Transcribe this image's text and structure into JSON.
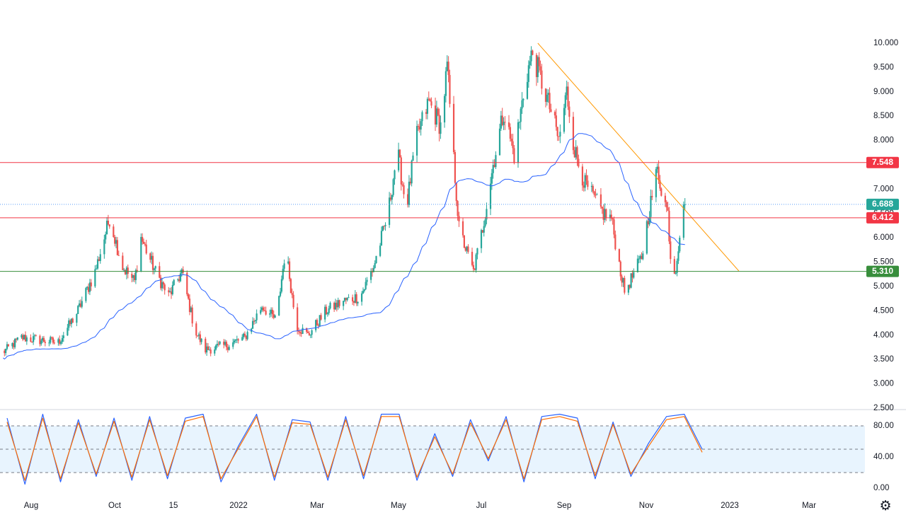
{
  "chart_data": [
    {
      "type": "candlestick",
      "price_axis": {
        "ticks": [
          "10.000",
          "9.500",
          "9.000",
          "8.500",
          "8.000",
          "7.500",
          "7.000",
          "6.500",
          "6.000",
          "5.500",
          "5.000",
          "4.500",
          "4.000",
          "3.500",
          "3.000",
          "2.500"
        ],
        "ylim": [
          2.5,
          10.0
        ]
      },
      "time_axis": {
        "ticks": [
          "Aug",
          "Oct",
          "15",
          "2022",
          "Mar",
          "May",
          "Jul",
          "Sep",
          "Nov",
          "2023",
          "Mar"
        ]
      },
      "horizontal_levels": [
        {
          "value": 7.548,
          "label": "7.548",
          "color": "#f23645"
        },
        {
          "value": 6.412,
          "label": "6.412",
          "color": "#f23645"
        },
        {
          "value": 5.31,
          "label": "5.310",
          "color": "#388e3c"
        }
      ],
      "last_price": {
        "value": 6.688,
        "label": "6.688",
        "color": "#26a69a"
      },
      "trendline": {
        "color": "#ff9800",
        "from": {
          "date": "Aug 2022",
          "price": 10.0
        },
        "to": {
          "date": "Jan 2023",
          "price": 5.32
        }
      },
      "moving_average": {
        "color": "#2962ff"
      },
      "colors": {
        "up": "#26a69a",
        "down": "#ef5350"
      },
      "price_path": [
        [
          "2021-07-12",
          3.65
        ],
        [
          "2021-07-26",
          3.95
        ],
        [
          "2021-08-09",
          3.9
        ],
        [
          "2021-08-23",
          3.85
        ],
        [
          "2021-09-06",
          4.45
        ],
        [
          "2021-09-20",
          5.3
        ],
        [
          "2021-10-01",
          6.4
        ],
        [
          "2021-10-11",
          5.4
        ],
        [
          "2021-10-20",
          5.1
        ],
        [
          "2021-10-25",
          6.0
        ],
        [
          "2021-11-05",
          5.3
        ],
        [
          "2021-11-15",
          4.8
        ],
        [
          "2021-11-25",
          5.3
        ],
        [
          "2021-12-05",
          4.1
        ],
        [
          "2021-12-13",
          3.7
        ],
        [
          "2021-12-30",
          3.8
        ],
        [
          "2022-01-12",
          3.95
        ],
        [
          "2022-01-25",
          4.6
        ],
        [
          "2022-02-05",
          4.3
        ],
        [
          "2022-02-12",
          5.8
        ],
        [
          "2022-02-20",
          4.2
        ],
        [
          "2022-03-01",
          4.0
        ],
        [
          "2022-03-15",
          4.5
        ],
        [
          "2022-03-28",
          4.7
        ],
        [
          "2022-04-10",
          4.8
        ],
        [
          "2022-04-20",
          5.4
        ],
        [
          "2022-05-01",
          6.5
        ],
        [
          "2022-05-08",
          7.8
        ],
        [
          "2022-05-15",
          6.6
        ],
        [
          "2022-05-22",
          8.0
        ],
        [
          "2022-06-01",
          8.8
        ],
        [
          "2022-06-10",
          8.3
        ],
        [
          "2022-06-15",
          9.5
        ],
        [
          "2022-06-20",
          7.6
        ],
        [
          "2022-06-24",
          6.2
        ],
        [
          "2022-07-05",
          5.3
        ],
        [
          "2022-07-12",
          6.2
        ],
        [
          "2022-07-20",
          7.5
        ],
        [
          "2022-07-28",
          8.6
        ],
        [
          "2022-08-05",
          7.7
        ],
        [
          "2022-08-14",
          9.3
        ],
        [
          "2022-08-19",
          9.8
        ],
        [
          "2022-08-26",
          9.2
        ],
        [
          "2022-09-02",
          8.6
        ],
        [
          "2022-09-08",
          8.0
        ],
        [
          "2022-09-14",
          9.0
        ],
        [
          "2022-09-20",
          7.8
        ],
        [
          "2022-09-28",
          7.1
        ],
        [
          "2022-10-05",
          6.8
        ],
        [
          "2022-10-12",
          6.5
        ],
        [
          "2022-10-18",
          6.4
        ],
        [
          "2022-10-23",
          5.6
        ],
        [
          "2022-10-28",
          4.9
        ],
        [
          "2022-11-03",
          5.2
        ],
        [
          "2022-11-10",
          5.6
        ],
        [
          "2022-11-16",
          6.6
        ],
        [
          "2022-11-22",
          7.4
        ],
        [
          "2022-11-26",
          6.9
        ],
        [
          "2022-11-30",
          6.5
        ],
        [
          "2022-12-03",
          5.2
        ],
        [
          "2022-12-06",
          5.4
        ],
        [
          "2022-12-10",
          6.3
        ],
        [
          "2022-12-13",
          6.688
        ]
      ]
    },
    {
      "type": "line",
      "indicator": "stochastic",
      "ticks": [
        "80.00",
        "40.00",
        "0.00"
      ],
      "ylim": [
        0,
        100
      ],
      "band": [
        20,
        80
      ],
      "midline": 50,
      "series": [
        {
          "color": "#2962ff",
          "values": [
            90,
            5,
            95,
            8,
            88,
            15,
            90,
            10,
            92,
            12,
            90,
            95,
            8,
            55,
            95,
            10,
            88,
            85,
            10,
            92,
            12,
            95,
            95,
            10,
            70,
            15,
            88,
            35,
            92,
            8,
            92,
            95,
            90,
            12,
            85,
            15,
            58,
            92,
            95,
            50
          ]
        },
        {
          "color": "#ff6d00",
          "values": [
            85,
            10,
            90,
            12,
            84,
            18,
            86,
            14,
            88,
            16,
            86,
            92,
            12,
            52,
            92,
            14,
            84,
            82,
            14,
            88,
            16,
            92,
            92,
            14,
            66,
            18,
            84,
            38,
            88,
            12,
            88,
            92,
            86,
            16,
            82,
            18,
            54,
            88,
            92,
            46
          ]
        }
      ]
    }
  ]
}
